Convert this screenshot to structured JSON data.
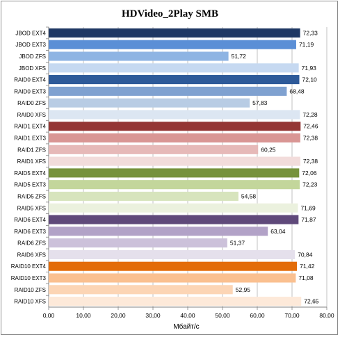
{
  "chart_data": {
    "type": "bar",
    "orientation": "horizontal",
    "title": "HDVideo_2Play SMB",
    "xlabel": "Мбайт/с",
    "xlim": [
      0,
      80
    ],
    "xticks": [
      "0,00",
      "10,00",
      "20,00",
      "30,00",
      "40,00",
      "50,00",
      "60,00",
      "70,00",
      "80,00"
    ],
    "grid": true,
    "legend": "none",
    "categories": [
      "JBOD EXT4",
      "JBOD EXT3",
      "JBOD ZFS",
      "JBOD XFS",
      "RAID0 EXT4",
      "RAID0 EXT3",
      "RAID0 ZFS",
      "RAID0 XFS",
      "RAID1 EXT4",
      "RAID1 EXT3",
      "RAID1 ZFS",
      "RAID1 XFS",
      "RAID5 EXT4",
      "RAID5 EXT3",
      "RAID5 ZFS",
      "RAID5 XFS",
      "RAID6 EXT4",
      "RAID6 EXT3",
      "RAID6 ZFS",
      "RAID6 XFS",
      "RAID10 EXT4",
      "RAID10 EXT3",
      "RAID10 ZFS",
      "RAID10 XFS"
    ],
    "values": [
      72.33,
      71.19,
      51.72,
      71.93,
      72.1,
      68.48,
      57.83,
      72.28,
      72.46,
      72.38,
      60.25,
      72.38,
      72.06,
      72.23,
      54.58,
      71.69,
      71.87,
      63.04,
      51.37,
      70.84,
      71.42,
      71.08,
      52.95,
      72.65
    ],
    "value_labels": [
      "72,33",
      "71,19",
      "51,72",
      "71,93",
      "72,10",
      "68,48",
      "57,83",
      "72,28",
      "72,46",
      "72,38",
      "60,25",
      "72,38",
      "72,06",
      "72,23",
      "54,58",
      "71,69",
      "71,87",
      "63,04",
      "51,37",
      "70,84",
      "71,42",
      "71,08",
      "52,95",
      "72,65"
    ],
    "colors": [
      "#1f3864",
      "#5b8fd6",
      "#8eb4e3",
      "#c6d9f1",
      "#2e5a99",
      "#7fa1d0",
      "#b8cce4",
      "#dce6f2",
      "#943634",
      "#d99694",
      "#e6b9b8",
      "#f2dcdb",
      "#76923c",
      "#c3d69b",
      "#d7e4bd",
      "#ebf1de",
      "#5f497a",
      "#b2a2c7",
      "#ccc1da",
      "#e5e0ec",
      "#e36c09",
      "#fac090",
      "#fcd5b5",
      "#fde9d9"
    ]
  }
}
